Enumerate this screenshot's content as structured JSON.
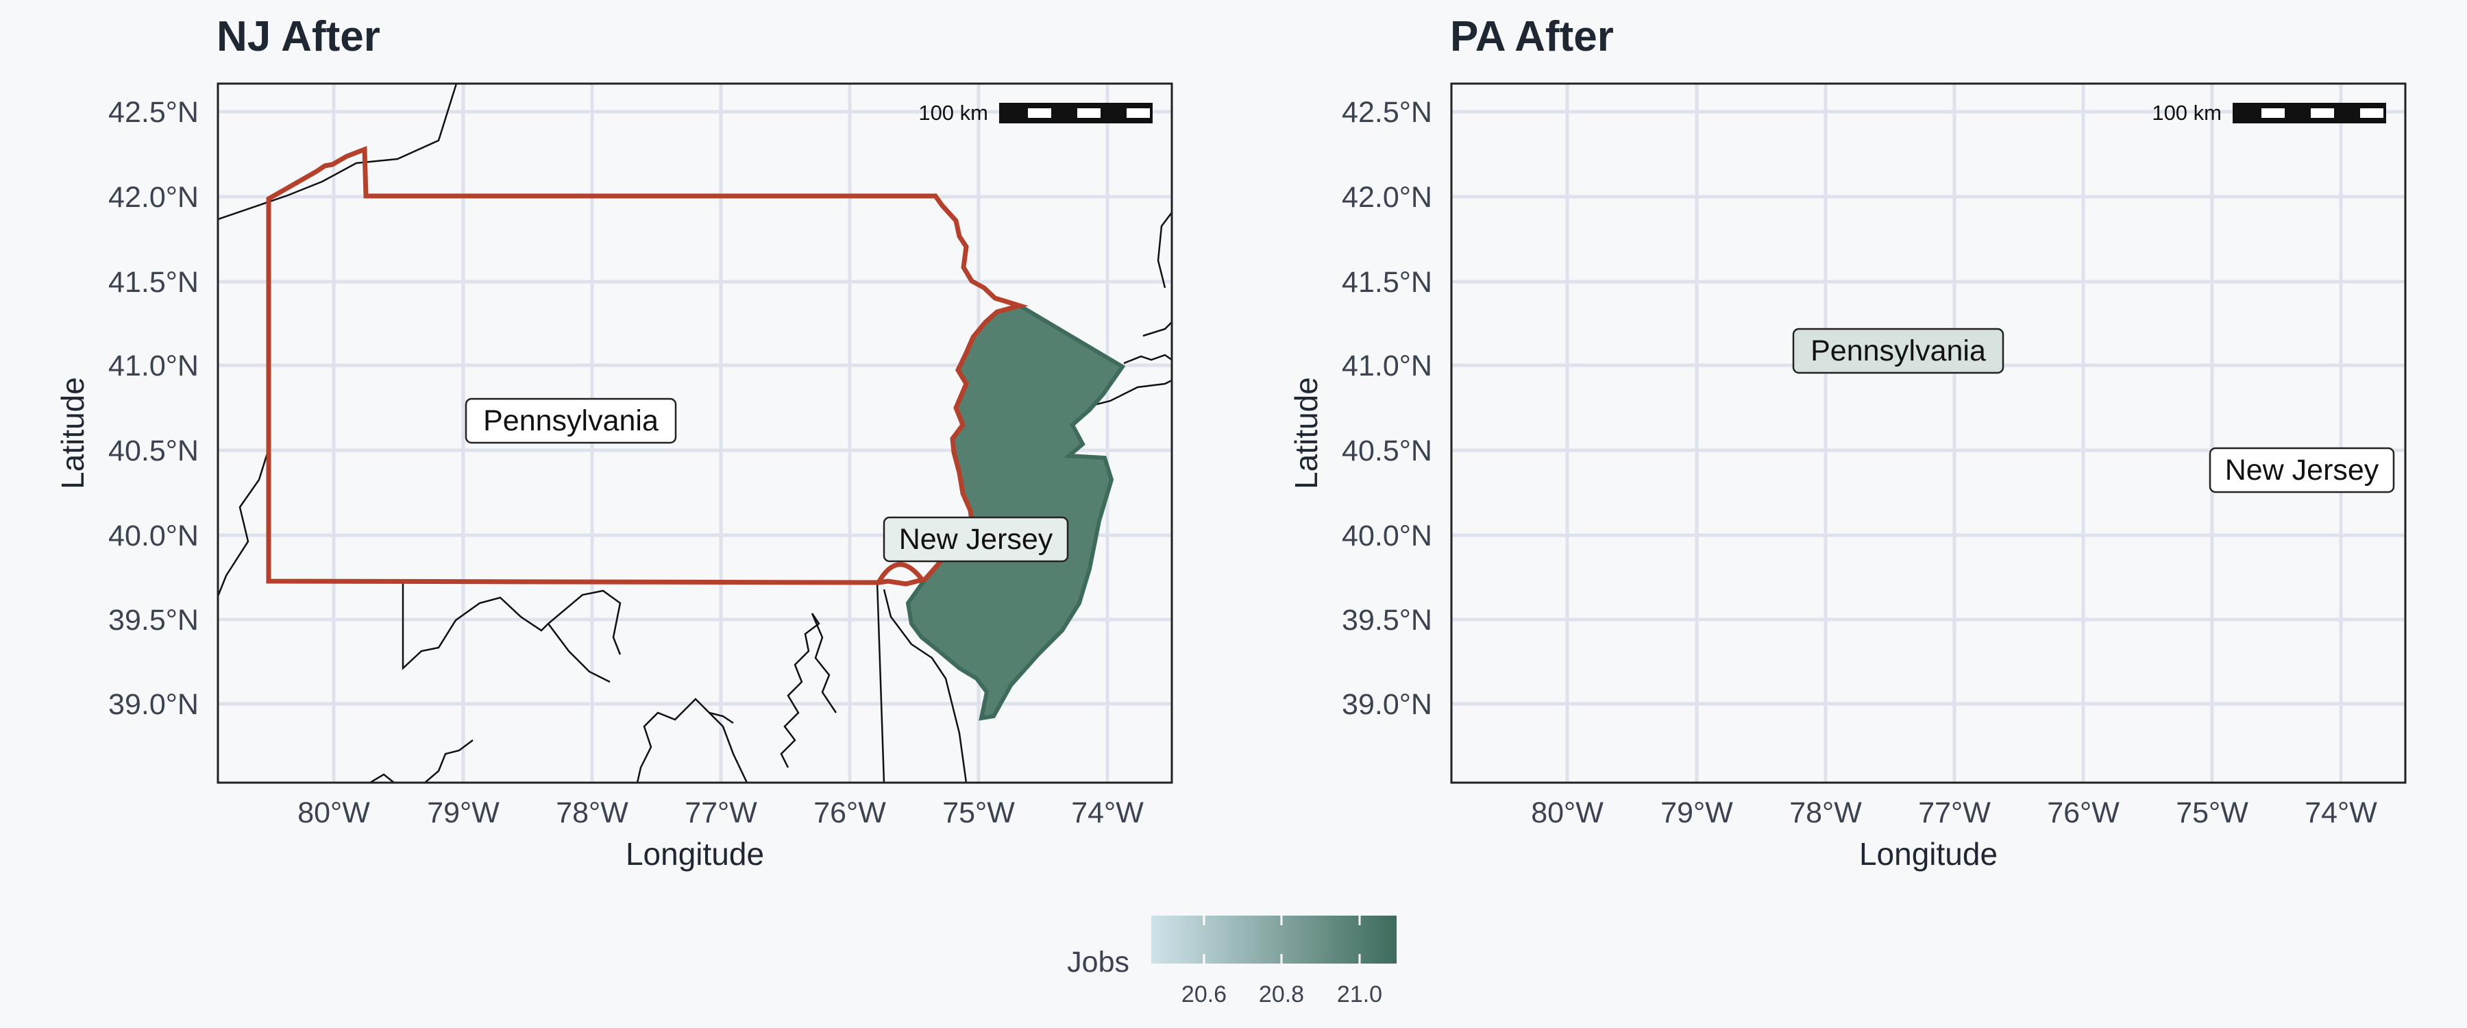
{
  "panels": [
    {
      "title": "NJ After",
      "xlabel": "Longitude",
      "ylabel": "Latitude",
      "scale_bar": "100 km",
      "labels": {
        "pa": "Pennsylvania",
        "nj": "New Jersey"
      },
      "fills": {
        "pa": "none",
        "nj": "#55806f"
      }
    },
    {
      "title": "PA After",
      "xlabel": "Longitude",
      "ylabel": "Latitude",
      "scale_bar": "100 km",
      "labels": {
        "pa": "Pennsylvania",
        "nj": "New Jersey"
      },
      "fills": {
        "pa": "#3d6b5c",
        "nj": "none"
      }
    }
  ],
  "axes": {
    "x_ticks": [
      "80°W",
      "79°W",
      "78°W",
      "77°W",
      "76°W",
      "75°W",
      "74°W"
    ],
    "y_ticks": [
      "42.5°N",
      "42.0°N",
      "41.5°N",
      "41.0°N",
      "40.5°N",
      "40.0°N",
      "39.5°N",
      "39.0°N"
    ]
  },
  "legend": {
    "title": "Jobs",
    "ticks": [
      "20.6",
      "20.8",
      "21.0"
    ],
    "colors": [
      "#cfe3ea",
      "#3d6b5c"
    ]
  },
  "colors": {
    "highlight_border": "#b5412c",
    "background": "#f7f8fa",
    "gridline": "#dde2ec"
  }
}
